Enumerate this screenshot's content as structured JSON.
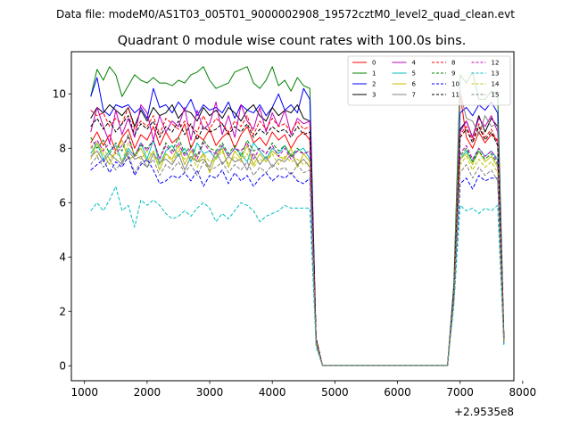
{
  "header": {
    "data_file": "Data file: modeM0/AS1T03_005T01_9000002908_19572cztM0_level2_quad_clean.evt"
  },
  "chart_data": {
    "type": "line",
    "title": "Quadrant 0 module wise count rates with 100.0s bins.",
    "xlabel": "",
    "ylabel": "",
    "x_offset_label": "+2.9535e8",
    "xlim": [
      790,
      7860
    ],
    "ylim": [
      -0.55,
      11.55
    ],
    "xticks": [
      1000,
      2000,
      3000,
      4000,
      5000,
      6000,
      7000,
      8000
    ],
    "yticks": [
      0,
      2,
      4,
      6,
      8,
      10
    ],
    "legend_position": "top-right",
    "x": [
      1100,
      1200,
      1300,
      1400,
      1500,
      1600,
      1700,
      1800,
      1900,
      2000,
      2100,
      2200,
      2300,
      2400,
      2500,
      2600,
      2700,
      2800,
      2900,
      3000,
      3100,
      3200,
      3300,
      3400,
      3500,
      3600,
      3700,
      3800,
      3900,
      4000,
      4100,
      4200,
      4300,
      4400,
      4500,
      4600,
      4700,
      4800,
      6800,
      6900,
      7000,
      7100,
      7200,
      7300,
      7400,
      7500,
      7600,
      7700
    ],
    "series": [
      {
        "name": "0",
        "color": "#ff0000",
        "dash": false,
        "values": [
          8.2,
          8.6,
          8.1,
          8.5,
          7.9,
          8.4,
          8.7,
          8.0,
          8.5,
          8.3,
          8.8,
          8.1,
          8.6,
          8.2,
          8.4,
          8.9,
          8.0,
          8.5,
          8.3,
          8.7,
          8.1,
          8.4,
          8.6,
          8.0,
          8.5,
          8.8,
          8.2,
          8.4,
          8.1,
          8.6,
          8.3,
          8.5,
          8.0,
          8.4,
          8.6,
          8.3,
          0.95,
          0.02,
          0.02,
          2.6,
          10.0,
          8.4,
          8.0,
          8.6,
          8.2,
          8.5,
          8.3,
          1.0
        ]
      },
      {
        "name": "1",
        "color": "#008000",
        "dash": false,
        "values": [
          9.9,
          10.9,
          10.5,
          11.0,
          10.7,
          9.9,
          10.3,
          10.7,
          10.5,
          10.4,
          10.6,
          10.4,
          10.4,
          10.3,
          10.5,
          10.4,
          10.7,
          10.8,
          11.0,
          10.5,
          10.2,
          10.3,
          10.4,
          10.8,
          10.9,
          11.0,
          10.4,
          10.2,
          10.5,
          11.0,
          10.3,
          10.5,
          10.1,
          10.6,
          10.3,
          10.2,
          1.0,
          0.02,
          0.02,
          3.0,
          10.7,
          10.4,
          10.8,
          9.8,
          9.8,
          10.1,
          10.0,
          1.1
        ]
      },
      {
        "name": "2",
        "color": "#0000ff",
        "dash": false,
        "values": [
          9.9,
          10.6,
          9.4,
          9.2,
          9.6,
          9.5,
          9.6,
          9.3,
          9.5,
          9.1,
          10.2,
          9.5,
          9.6,
          9.3,
          9.7,
          9.4,
          9.8,
          9.2,
          9.6,
          9.4,
          9.5,
          9.3,
          9.7,
          9.1,
          9.6,
          9.4,
          9.3,
          9.6,
          9.2,
          9.5,
          10.0,
          9.4,
          9.6,
          9.3,
          10.2,
          9.8,
          1.0,
          0.02,
          0.02,
          2.8,
          9.3,
          9.5,
          9.2,
          9.6,
          9.4,
          9.7,
          9.3,
          1.0
        ]
      },
      {
        "name": "3",
        "color": "#000000",
        "dash": false,
        "values": [
          9.1,
          9.5,
          9.3,
          9.6,
          9.4,
          9.2,
          9.5,
          8.8,
          9.4,
          9.0,
          9.5,
          9.2,
          9.3,
          9.6,
          9.1,
          9.4,
          9.3,
          9.0,
          9.5,
          9.2,
          9.4,
          9.1,
          9.5,
          9.3,
          9.0,
          9.4,
          9.6,
          9.2,
          9.0,
          9.5,
          9.2,
          9.4,
          9.3,
          9.6,
          9.1,
          9.0,
          1.0,
          0.02,
          0.02,
          2.7,
          8.7,
          9.0,
          8.4,
          9.2,
          8.6,
          9.1,
          8.8,
          1.0
        ]
      },
      {
        "name": "4",
        "color": "#bf00bf",
        "dash": false,
        "values": [
          8.6,
          9.5,
          8.8,
          8.2,
          9.4,
          8.5,
          9.1,
          8.4,
          9.6,
          9.3,
          8.3,
          9.2,
          8.6,
          9.0,
          8.8,
          9.5,
          8.3,
          9.4,
          8.7,
          8.9,
          9.7,
          8.5,
          9.2,
          8.4,
          9.6,
          9.0,
          8.7,
          9.5,
          8.6,
          9.3,
          8.8,
          9.4,
          8.5,
          9.1,
          8.9,
          9.0,
          1.0,
          0.02,
          0.02,
          2.7,
          8.6,
          9.0,
          8.4,
          9.1,
          8.8,
          9.2,
          8.6,
          1.0
        ]
      },
      {
        "name": "5",
        "color": "#00bfbf",
        "dash": false,
        "values": [
          7.8,
          8.2,
          7.6,
          7.9,
          8.1,
          7.5,
          8.0,
          7.7,
          8.2,
          7.6,
          8.3,
          7.4,
          7.9,
          8.1,
          7.7,
          8.0,
          7.5,
          8.2,
          7.8,
          7.9,
          7.6,
          8.1,
          7.7,
          8.0,
          7.8,
          7.5,
          8.2,
          7.9,
          7.6,
          8.0,
          7.8,
          8.1,
          7.7,
          7.9,
          8.0,
          7.6,
          0.9,
          0.02,
          0.02,
          2.5,
          7.6,
          7.9,
          7.5,
          8.0,
          7.7,
          7.9,
          7.6,
          0.9
        ]
      },
      {
        "name": "6",
        "color": "#bfbf00",
        "dash": false,
        "values": [
          7.6,
          8.2,
          7.8,
          7.4,
          7.9,
          8.3,
          7.6,
          7.7,
          8.0,
          7.5,
          7.9,
          7.2,
          7.8,
          7.6,
          8.1,
          7.4,
          7.9,
          7.5,
          7.8,
          7.1,
          7.7,
          8.0,
          7.3,
          7.9,
          7.6,
          8.1,
          7.4,
          7.8,
          7.5,
          7.9,
          7.7,
          7.6,
          8.0,
          7.3,
          7.8,
          7.5,
          0.9,
          0.02,
          0.02,
          2.5,
          7.6,
          7.8,
          7.4,
          7.9,
          7.5,
          7.7,
          7.3,
          0.9
        ]
      },
      {
        "name": "7",
        "color": "#808080",
        "dash": false,
        "values": [
          7.7,
          7.9,
          7.5,
          7.8,
          7.6,
          7.4,
          7.9,
          7.6,
          7.7,
          7.3,
          7.8,
          7.5,
          7.6,
          7.4,
          7.8,
          7.2,
          7.7,
          7.5,
          7.6,
          7.3,
          7.9,
          7.4,
          7.7,
          7.5,
          7.6,
          7.2,
          7.8,
          7.4,
          7.7,
          7.3,
          7.6,
          7.5,
          7.8,
          7.4,
          7.6,
          7.3,
          0.9,
          0.02,
          0.02,
          2.5,
          10.1,
          9.1,
          9.0,
          8.5,
          9.2,
          8.8,
          8.9,
          1.0
        ]
      },
      {
        "name": "8",
        "color": "#ff0000",
        "dash": true,
        "values": [
          9.4,
          9.2,
          9.3,
          8.8,
          9.1,
          8.9,
          9.5,
          8.7,
          9.0,
          8.8,
          9.2,
          8.5,
          9.1,
          8.9,
          8.7,
          9.0,
          8.8,
          8.6,
          9.2,
          8.7,
          9.1,
          8.9,
          8.6,
          9.0,
          8.8,
          9.2,
          8.5,
          9.0,
          8.7,
          9.1,
          8.8,
          8.9,
          8.6,
          9.0,
          8.7,
          8.8,
          1.0,
          0.02,
          0.02,
          2.6,
          8.5,
          8.8,
          8.3,
          8.9,
          8.4,
          8.7,
          8.2,
          1.0
        ]
      },
      {
        "name": "9",
        "color": "#008000",
        "dash": true,
        "values": [
          8.4,
          8.0,
          8.3,
          7.8,
          8.2,
          7.9,
          8.5,
          7.7,
          8.1,
          8.0,
          8.3,
          7.6,
          8.2,
          7.9,
          8.4,
          7.8,
          8.1,
          7.7,
          8.3,
          8.0,
          7.9,
          8.2,
          7.8,
          8.1,
          7.7,
          8.3,
          7.9,
          8.0,
          7.8,
          8.2,
          7.9,
          8.1,
          7.7,
          8.0,
          7.8,
          7.9,
          0.9,
          0.02,
          0.02,
          2.6,
          7.7,
          8.0,
          7.5,
          7.9,
          7.6,
          7.8,
          7.4,
          0.9
        ]
      },
      {
        "name": "10",
        "color": "#0000ff",
        "dash": true,
        "values": [
          7.2,
          7.4,
          7.6,
          7.1,
          7.5,
          7.3,
          7.7,
          7.0,
          7.4,
          7.6,
          7.2,
          6.7,
          6.8,
          7.0,
          6.9,
          7.1,
          6.8,
          7.2,
          6.6,
          7.0,
          6.9,
          7.2,
          6.7,
          7.1,
          6.8,
          7.0,
          6.6,
          6.9,
          7.1,
          6.8,
          7.0,
          6.9,
          7.1,
          6.8,
          6.7,
          6.9,
          0.8,
          0.02,
          0.02,
          2.4,
          6.7,
          6.9,
          6.5,
          7.0,
          6.8,
          6.9,
          6.9,
          0.8
        ]
      },
      {
        "name": "11",
        "color": "#000000",
        "dash": true,
        "values": [
          8.8,
          9.1,
          8.7,
          9.0,
          8.6,
          8.9,
          9.2,
          8.5,
          8.9,
          8.7,
          9.0,
          8.4,
          8.8,
          8.6,
          9.0,
          8.5,
          8.9,
          8.3,
          8.8,
          8.6,
          8.7,
          8.9,
          8.5,
          8.8,
          8.6,
          8.9,
          8.4,
          8.7,
          8.5,
          8.8,
          8.6,
          8.7,
          8.4,
          8.8,
          8.5,
          8.6,
          1.0,
          0.02,
          0.02,
          2.6,
          8.4,
          8.7,
          8.2,
          8.8,
          8.3,
          8.6,
          8.1,
          1.0
        ]
      },
      {
        "name": "12",
        "color": "#bf00bf",
        "dash": true,
        "values": [
          8.0,
          8.3,
          7.9,
          8.2,
          7.8,
          8.1,
          8.4,
          7.7,
          8.2,
          7.9,
          8.3,
          7.6,
          8.1,
          7.8,
          8.2,
          7.7,
          8.0,
          7.6,
          8.2,
          7.9,
          7.8,
          8.1,
          7.7,
          8.0,
          7.9,
          8.2,
          7.6,
          8.0,
          7.8,
          8.1,
          7.7,
          8.0,
          7.6,
          7.9,
          7.8,
          7.9,
          0.9,
          0.02,
          0.02,
          2.5,
          7.8,
          8.1,
          7.6,
          8.0,
          7.7,
          7.9,
          7.5,
          0.9
        ]
      },
      {
        "name": "13",
        "color": "#00bfbf",
        "dash": true,
        "values": [
          5.7,
          6.0,
          5.7,
          6.1,
          6.6,
          5.7,
          5.9,
          5.1,
          6.1,
          5.9,
          6.1,
          5.9,
          5.6,
          5.4,
          5.5,
          5.7,
          5.5,
          5.8,
          6.0,
          5.8,
          5.3,
          5.6,
          5.4,
          5.7,
          6.0,
          5.9,
          5.7,
          5.3,
          5.5,
          5.6,
          5.7,
          5.9,
          5.8,
          5.8,
          5.8,
          5.8,
          0.7,
          0.02,
          0.02,
          2.2,
          5.9,
          5.7,
          5.8,
          5.6,
          5.8,
          5.7,
          5.9,
          0.7
        ]
      },
      {
        "name": "14",
        "color": "#bfbf00",
        "dash": true,
        "values": [
          8.1,
          7.7,
          8.0,
          7.6,
          7.9,
          7.5,
          8.2,
          7.8,
          7.6,
          7.9,
          7.7,
          7.4,
          7.8,
          7.5,
          7.9,
          7.6,
          7.7,
          7.3,
          7.8,
          7.5,
          7.6,
          7.9,
          7.4,
          7.7,
          7.5,
          7.8,
          7.3,
          7.6,
          7.5,
          7.8,
          7.4,
          7.7,
          7.5,
          7.6,
          7.4,
          7.5,
          0.9,
          0.02,
          0.02,
          2.5,
          7.4,
          7.7,
          7.2,
          7.6,
          7.3,
          7.5,
          7.1,
          0.9
        ]
      },
      {
        "name": "15",
        "color": "#808080",
        "dash": true,
        "values": [
          7.4,
          7.7,
          7.3,
          7.6,
          7.2,
          7.5,
          7.8,
          7.1,
          7.5,
          7.3,
          7.6,
          7.0,
          7.4,
          7.2,
          7.5,
          7.1,
          7.4,
          7.0,
          7.5,
          7.2,
          7.3,
          7.5,
          7.1,
          7.4,
          7.2,
          7.5,
          7.0,
          7.3,
          7.1,
          7.4,
          7.2,
          7.3,
          7.0,
          7.4,
          7.1,
          7.2,
          0.8,
          0.02,
          0.02,
          2.4,
          7.1,
          7.4,
          6.9,
          7.3,
          7.0,
          7.2,
          6.8,
          0.8
        ]
      }
    ]
  }
}
